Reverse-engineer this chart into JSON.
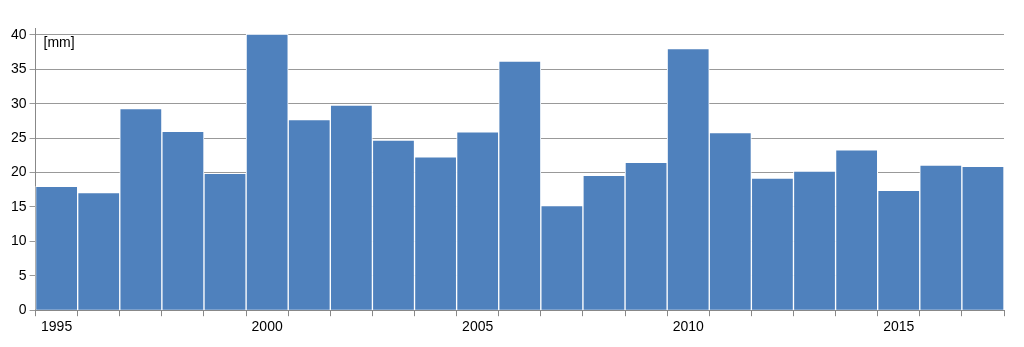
{
  "chart_data": {
    "type": "bar",
    "ylabel": "[mm]",
    "categories": [
      "1995",
      null,
      null,
      null,
      null,
      "2000",
      null,
      null,
      null,
      null,
      "2005",
      null,
      null,
      null,
      null,
      "2010",
      null,
      null,
      null,
      null,
      "2015",
      null,
      null
    ],
    "values": [
      18.0,
      17.1,
      29.3,
      26.0,
      19.9,
      40.1,
      27.7,
      29.8,
      24.7,
      22.3,
      25.9,
      36.2,
      15.2,
      19.6,
      21.5,
      38.0,
      25.8,
      19.2,
      20.2,
      23.3,
      17.4,
      21.1,
      20.9
    ],
    "color": "#4f81bd",
    "ylim": [
      0,
      41
    ],
    "yticks": [
      0,
      5,
      10,
      15,
      20,
      25,
      30,
      35,
      40
    ],
    "grid": "y"
  }
}
